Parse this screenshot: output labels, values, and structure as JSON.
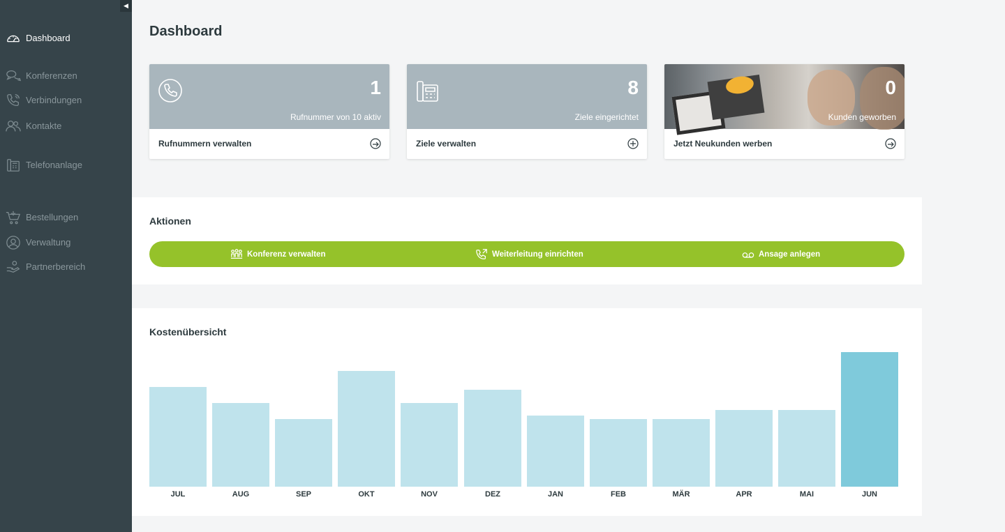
{
  "sidebar": {
    "items": [
      {
        "label": "Dashboard",
        "icon": "speedometer-icon",
        "active": true
      },
      {
        "label": "Konferenzen",
        "icon": "chat-bubbles-icon"
      },
      {
        "label": "Verbindungen",
        "icon": "phone-wave-icon"
      },
      {
        "label": "Kontakte",
        "icon": "people-icon"
      },
      {
        "label": "Telefonanlage",
        "icon": "desk-phone-icon"
      },
      {
        "label": "Bestellungen",
        "icon": "cart-icon"
      },
      {
        "label": "Verwaltung",
        "icon": "user-circle-icon"
      },
      {
        "label": "Partnerbereich",
        "icon": "hand-icon"
      }
    ]
  },
  "header": {
    "title": "Dashboard"
  },
  "cards": [
    {
      "number": "1",
      "subtitle": "Rufnummer von 10 aktiv",
      "label": "Rufnummern verwalten",
      "icon": "phone-circle-icon",
      "action_icon": "arrow-circle-icon"
    },
    {
      "number": "8",
      "subtitle": "Ziele eingerichtet",
      "label": "Ziele verwalten",
      "icon": "desk-phone-icon",
      "action_icon": "plus-circle-icon"
    },
    {
      "number": "0",
      "subtitle": "Kunden geworben",
      "label": "Jetzt Neukunden werben",
      "icon": "gift-photo",
      "action_icon": "arrow-circle-icon"
    }
  ],
  "actions": {
    "title": "Aktionen",
    "items": [
      {
        "label": "Konferenz verwalten",
        "icon": "conference-icon"
      },
      {
        "label": "Weiterleitung einrichten",
        "icon": "phone-forward-icon"
      },
      {
        "label": "Ansage anlegen",
        "icon": "voicemail-icon"
      }
    ],
    "color": "#95c22a"
  },
  "costs": {
    "title": "Kostenübersicht"
  },
  "chart_data": {
    "type": "bar",
    "categories": [
      "JUL",
      "AUG",
      "SEP",
      "OKT",
      "NOV",
      "DEZ",
      "JAN",
      "FEB",
      "MÄR",
      "APR",
      "MAI",
      "JUN"
    ],
    "values": [
      74,
      62,
      50,
      86,
      62,
      72,
      53,
      50,
      50,
      57,
      57,
      100
    ],
    "highlight_index": 11,
    "bar_color": "#bfe3ec",
    "highlight_color": "#7fcadb",
    "ylim": [
      0,
      100
    ],
    "grid": false,
    "title": "",
    "xlabel": "",
    "ylabel": ""
  }
}
